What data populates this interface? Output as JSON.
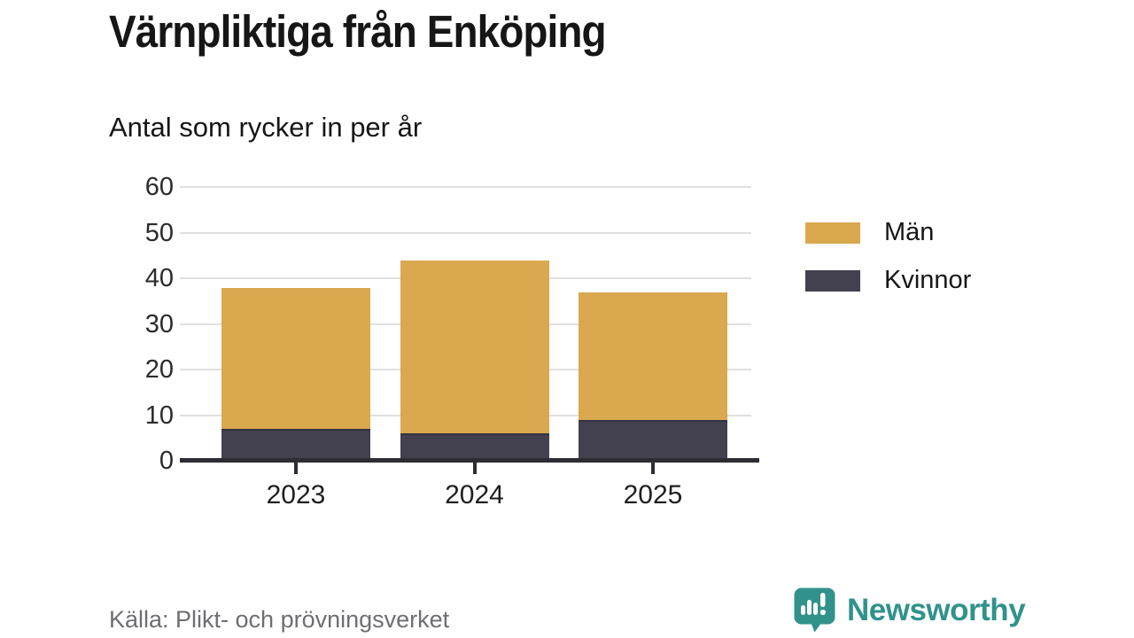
{
  "chart_data": {
    "type": "bar",
    "stacked": true,
    "title": "Värnpliktiga från Enköping",
    "subtitle": "Antal som rycker in per år",
    "categories": [
      "2023",
      "2024",
      "2025"
    ],
    "series": [
      {
        "name": "Män",
        "color": "#d9a84f",
        "values": [
          31,
          38,
          28
        ]
      },
      {
        "name": "Kvinnor",
        "color": "#434050",
        "values": [
          7,
          6,
          9
        ]
      }
    ],
    "totals": [
      38,
      44,
      37
    ],
    "xlabel": "",
    "ylabel": "",
    "ylim": [
      0,
      60
    ],
    "yticks": [
      0,
      10,
      20,
      30,
      40,
      50,
      60
    ],
    "grid": true,
    "legend_position": "right"
  },
  "colors": {
    "man": "#d9a84f",
    "kvinnor": "#434050",
    "axis": "#2e2c33",
    "gridline": "#e0e0e0",
    "segment_divider": "#363340",
    "title_text": "#161616",
    "muted_text": "#6e6e73",
    "brand_teal": "#31928c"
  },
  "footer": {
    "source": "Källa: Plikt- och prövningsverket",
    "brand": "Newsworthy"
  }
}
